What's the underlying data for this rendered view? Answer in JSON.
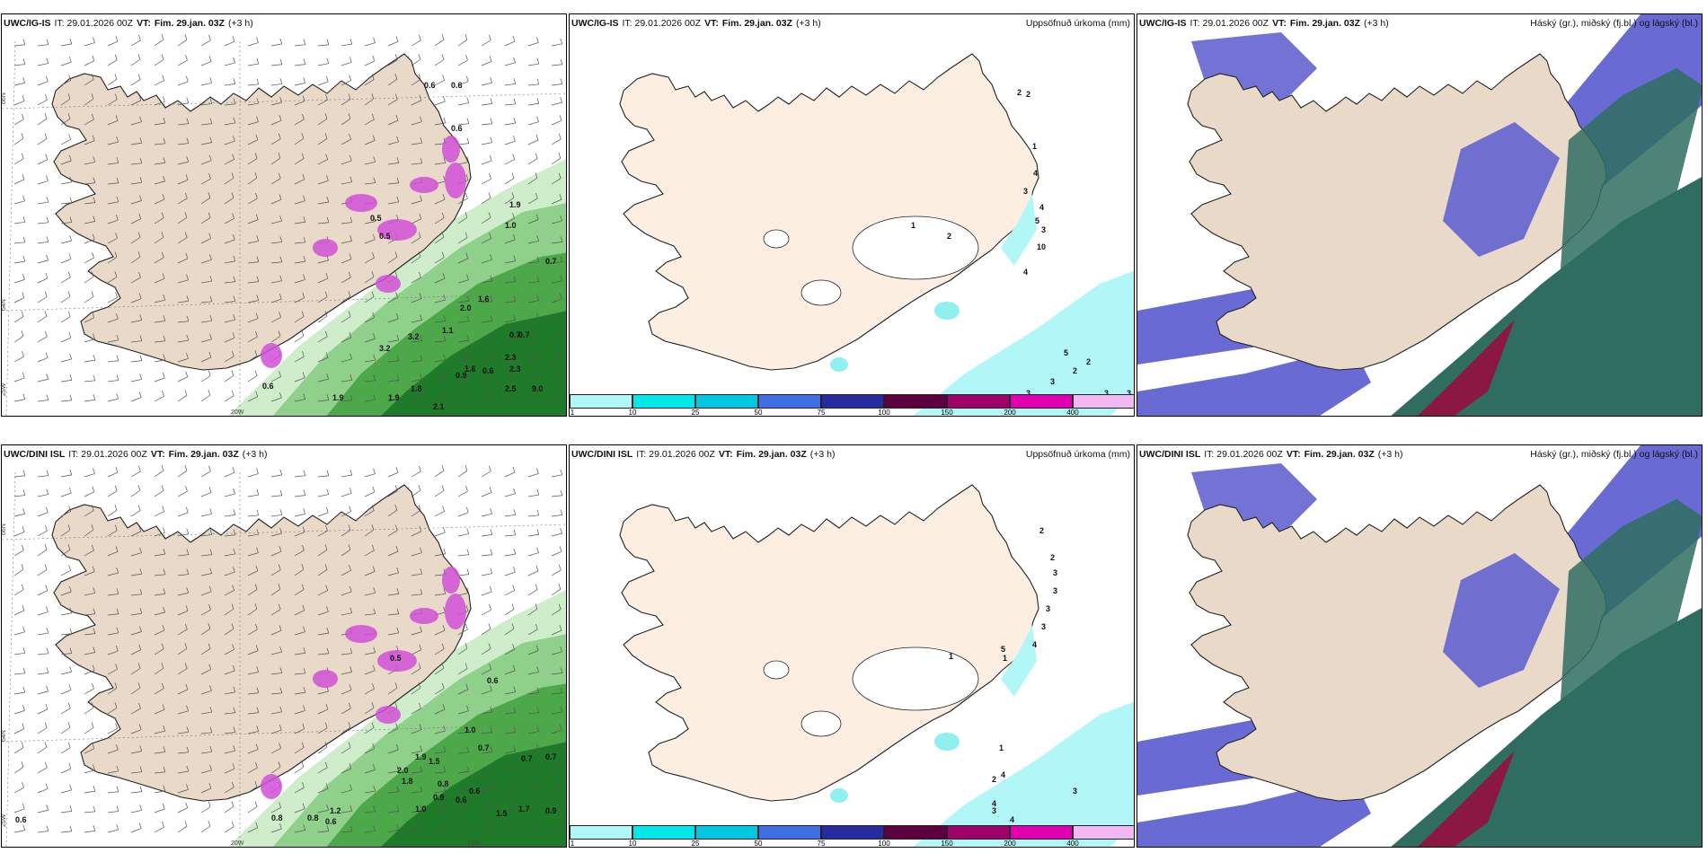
{
  "panels": {
    "p1": {
      "model": "UWC/IG-IS",
      "it": "IT: 29.01.2026 00Z",
      "vt_label": "VT:",
      "vt_date": "Fim. 29.jan. 03Z",
      "lead": "(+3 h)",
      "right": ""
    },
    "p2": {
      "model": "UWC/IG-IS",
      "it": "IT: 29.01.2026 00Z",
      "vt_label": "VT:",
      "vt_date": "Fim. 29.jan. 03Z",
      "lead": "(+3 h)",
      "right": "Uppsöfnuð úrkoma (mm)"
    },
    "p3": {
      "model": "UWC/IG-IS",
      "it": "IT: 29.01.2026 00Z",
      "vt_label": "VT:",
      "vt_date": "Fim. 29.jan. 03Z",
      "lead": "(+3 h)",
      "right": "Háský (gr.), miðský (fj.bl.) og lágský (bl.)"
    },
    "p4": {
      "model": "UWC/DINI ISL",
      "it": "IT: 29.01.2026 00Z",
      "vt_label": "VT:",
      "vt_date": "Fim. 29.jan. 03Z",
      "lead": "(+3 h)",
      "right": ""
    },
    "p5": {
      "model": "UWC/DINI ISL",
      "it": "IT: 29.01.2026 00Z",
      "vt_label": "VT:",
      "vt_date": "Fim. 29.jan. 03Z",
      "lead": "(+3 h)",
      "right": "Uppsöfnuð úrkoma (mm)"
    },
    "p6": {
      "model": "UWC/DINI ISL",
      "it": "IT: 29.01.2026 00Z",
      "vt_label": "VT:",
      "vt_date": "Fim. 29.jan. 03Z",
      "lead": "(+3 h)",
      "right": "Háský (gr.), miðský (fj.bl.) og lágský (bl.)"
    }
  },
  "coords": {
    "lat66": "66N",
    "lat64": "64N",
    "lon25": "25W",
    "lon20": "20W",
    "lon15": "15W"
  },
  "colorbar": {
    "labels": [
      "1",
      "10",
      "25",
      "50",
      "75",
      "100",
      "150",
      "200",
      "400"
    ],
    "colors": [
      "#b2f7f7",
      "#00e8e8",
      "#00c8e0",
      "#3f6fe0",
      "#2a2aa0",
      "#5c0040",
      "#a0006a",
      "#e000b0",
      "#f2b8f0"
    ]
  },
  "values": {
    "p1": [
      "0.6",
      "0.6",
      "0.7",
      "0.7",
      "3.2",
      "3.2",
      "2.3",
      "2.3",
      "2.5",
      "9.0",
      "1.9",
      "1.9",
      "2.1",
      "1.1",
      "1.8",
      "1.6",
      "0.6",
      "0.7",
      "0.5",
      "0.6",
      "1.0",
      "1.9",
      "2.0",
      "1.6",
      "0.9",
      "0.6",
      "0.5"
    ],
    "p2": [
      "2",
      "2",
      "1",
      "4",
      "3",
      "5",
      "4",
      "3",
      "10",
      "4",
      "1",
      "2",
      "5",
      "2",
      "2",
      "3",
      "3",
      "3",
      "3",
      "3"
    ],
    "p4": [
      "0.6",
      "0.8",
      "0.8",
      "0.6",
      "1.2",
      "1.0",
      "0.9",
      "0.8",
      "0.6",
      "0.6",
      "1.5",
      "0.7",
      "0.7",
      "1.7",
      "0.9",
      "0.5",
      "0.6",
      "1.0",
      "0.7",
      "1.5",
      "2.0",
      "1.9",
      "1.8"
    ],
    "p5": [
      "2",
      "2",
      "3",
      "3",
      "3",
      "3",
      "4",
      "1",
      "1",
      "2",
      "4",
      "4",
      "2",
      "3",
      "3",
      "4",
      "1",
      "5"
    ]
  }
}
